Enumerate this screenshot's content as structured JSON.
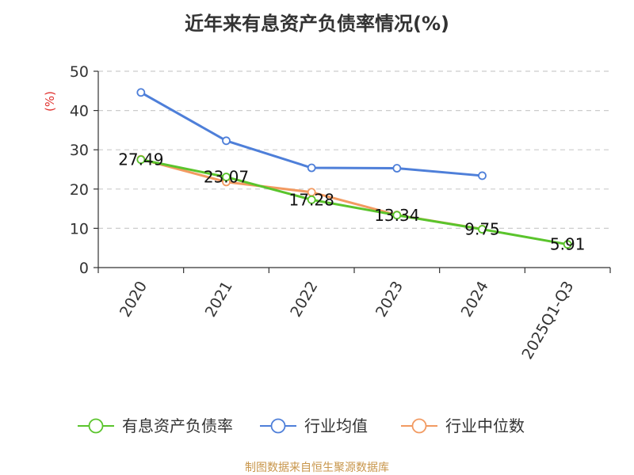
{
  "chart_data": {
    "type": "line",
    "title": "近年来有息资产负债率情况(%)",
    "ylabel": "(%)",
    "categories": [
      "2020",
      "2021",
      "2022",
      "2023",
      "2024",
      "2025Q1-Q3"
    ],
    "ylim": [
      0,
      50
    ],
    "yticks": [
      0,
      10,
      20,
      30,
      40,
      50
    ],
    "grid": true,
    "legend_position": "bottom",
    "series": [
      {
        "name": "有息资产负债率",
        "color": "#5ac42c",
        "values": [
          27.49,
          23.07,
          17.28,
          13.34,
          9.75,
          5.91
        ],
        "labels": [
          "27.49",
          "23.07",
          "17.28",
          "13.34",
          "9.75",
          "5.91"
        ]
      },
      {
        "name": "行业均值",
        "color": "#4e7fd9",
        "values": [
          44.6,
          32.3,
          25.4,
          25.3,
          23.4,
          null
        ]
      },
      {
        "name": "行业中位数",
        "color": "#f29a61",
        "values": [
          27.6,
          21.8,
          19.2,
          13.4,
          9.8,
          null
        ]
      }
    ],
    "source": "制图数据来自恒生聚源数据库"
  }
}
